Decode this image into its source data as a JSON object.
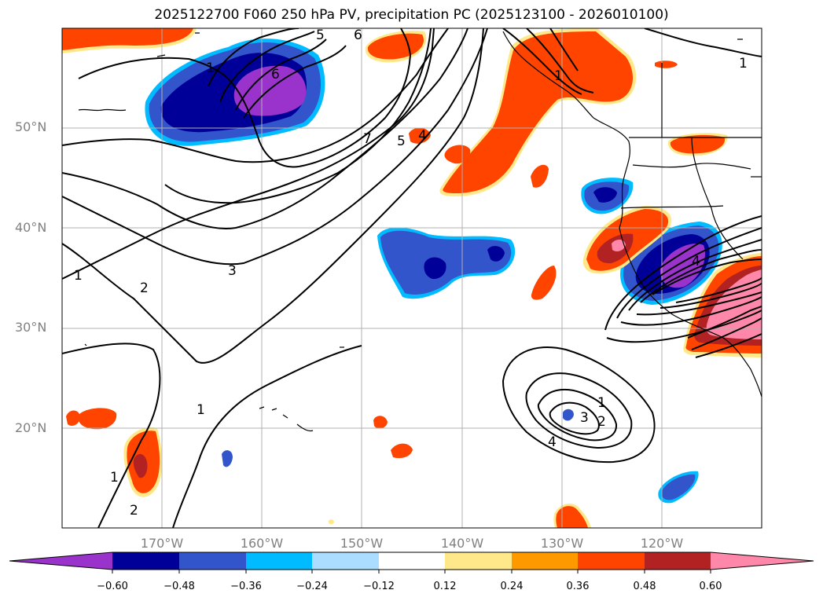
{
  "title": "2025122700 F060 250 hPa PV, precipitation PC (2025123100 - 2026010100)",
  "latitude_labels": [
    "50°N",
    "40°N",
    "30°N",
    "20°N"
  ],
  "longitude_labels": [
    "170°W",
    "160°W",
    "150°W",
    "140°W",
    "130°W",
    "120°W"
  ],
  "contour_labels": [
    "1",
    "6",
    "6",
    "5",
    "7",
    "5",
    "4",
    "3",
    "2",
    "1",
    "1",
    "1",
    "2",
    "1",
    "1",
    "3",
    "2",
    "4",
    "1",
    "4"
  ],
  "colorbar": {
    "ticks": [
      "−0.60",
      "−0.48",
      "−0.36",
      "−0.24",
      "−0.12",
      "0.12",
      "0.24",
      "0.36",
      "0.48",
      "0.60"
    ],
    "colors": [
      "#9933cc",
      "#000099",
      "#3355cc",
      "#00bbff",
      "#aaddff",
      "#ffffff",
      "#ffe88a",
      "#ff9900",
      "#ff4400",
      "#b22222",
      "#ff88aa"
    ]
  },
  "colors": {
    "grid": "#b0b0b0",
    "coast": "#000000",
    "contour": "#000000"
  }
}
